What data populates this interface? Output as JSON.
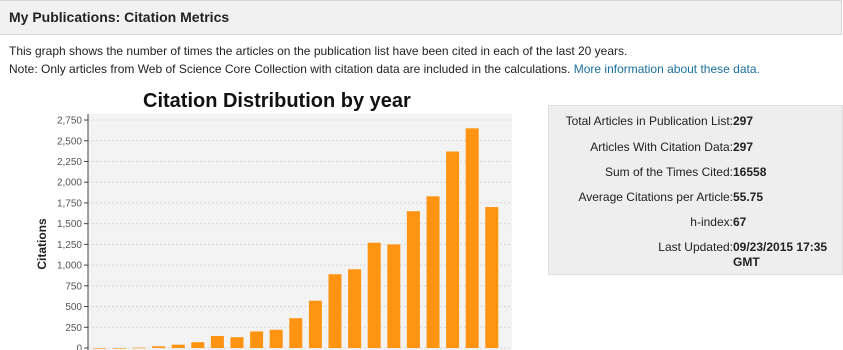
{
  "header": {
    "title": "My Publications: Citation Metrics"
  },
  "description": {
    "line1": "This graph shows the number of times the articles on the publication list have been cited in each of the last 20 years.",
    "line2": "Note: Only articles from Web of Science Core Collection with citation data are included in the calculations.",
    "link": "More information about these data."
  },
  "chart_data": {
    "type": "bar",
    "title": "Citation Distribution by year",
    "ylabel": "Citations",
    "xlabel": "",
    "ylim": [
      0,
      2800
    ],
    "yticks": [
      "0",
      "250",
      "500",
      "750",
      "1,000",
      "1,250",
      "1,500",
      "1,750",
      "2,000",
      "2,250",
      "2,500",
      "2,750"
    ],
    "bar_color": "#ff9412",
    "values": [
      0,
      0,
      5,
      20,
      40,
      70,
      145,
      130,
      200,
      220,
      360,
      570,
      890,
      950,
      1270,
      1250,
      1650,
      1830,
      2370,
      2650,
      1700
    ]
  },
  "metrics": [
    {
      "label": "Total Articles in Publication List:",
      "value": "297"
    },
    {
      "label": "Articles With Citation Data:",
      "value": "297"
    },
    {
      "label": "Sum of the Times Cited:",
      "value": "16558"
    },
    {
      "label": "Average Citations per Article:",
      "value": "55.75"
    },
    {
      "label": "h-index:",
      "value": "67"
    },
    {
      "label": "Last Updated:",
      "value": "09/23/2015 17:35 GMT"
    }
  ]
}
